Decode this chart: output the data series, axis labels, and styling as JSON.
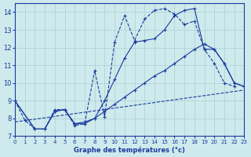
{
  "title": "Graphe des températures (°c)",
  "bg_color": "#ceeaec",
  "grid_color": "#aad0d4",
  "line_color": "#1a3a9e",
  "xlim": [
    0,
    23
  ],
  "ylim": [
    7,
    14.5
  ],
  "xticks": [
    0,
    1,
    2,
    3,
    4,
    5,
    6,
    7,
    8,
    9,
    10,
    11,
    12,
    13,
    14,
    15,
    16,
    17,
    18,
    19,
    20,
    21,
    22,
    23
  ],
  "yticks": [
    7,
    8,
    9,
    10,
    11,
    12,
    13,
    14
  ],
  "series1_x": [
    0,
    1,
    2,
    3,
    4,
    5,
    6,
    7,
    8,
    9,
    10,
    11,
    12,
    13,
    14,
    15,
    16,
    17,
    18,
    19,
    20,
    21,
    22
  ],
  "series1_y": [
    9.0,
    7.9,
    7.4,
    7.4,
    8.5,
    8.5,
    7.6,
    7.7,
    10.7,
    8.1,
    12.3,
    13.8,
    12.4,
    13.6,
    14.1,
    14.2,
    13.9,
    13.3,
    13.5,
    11.9,
    11.1,
    10.0,
    9.8
  ],
  "series2_x": [
    0,
    2,
    3,
    4,
    5,
    6,
    7,
    8,
    9,
    10,
    11,
    12,
    13,
    14,
    15,
    16,
    17,
    18,
    19,
    20,
    21,
    22,
    23
  ],
  "series2_y": [
    9.0,
    7.4,
    7.4,
    8.4,
    8.5,
    7.7,
    7.7,
    8.0,
    9.0,
    10.2,
    11.4,
    12.3,
    12.4,
    12.5,
    13.0,
    13.8,
    14.1,
    14.2,
    11.9,
    11.9,
    11.1,
    10.0,
    9.8
  ],
  "series3_x": [
    0,
    2,
    3,
    4,
    5,
    6,
    7,
    8,
    9,
    10,
    11,
    12,
    13,
    14,
    15,
    16,
    17,
    18,
    19,
    20,
    21,
    22,
    23
  ],
  "series3_y": [
    9.0,
    7.4,
    7.4,
    8.4,
    8.5,
    7.7,
    7.8,
    8.0,
    8.4,
    8.8,
    9.2,
    9.6,
    10.0,
    10.4,
    10.7,
    11.1,
    11.5,
    11.9,
    12.2,
    11.9,
    11.1,
    10.0,
    9.8
  ],
  "series4_x": [
    0,
    23
  ],
  "series4_y": [
    7.8,
    9.6
  ]
}
